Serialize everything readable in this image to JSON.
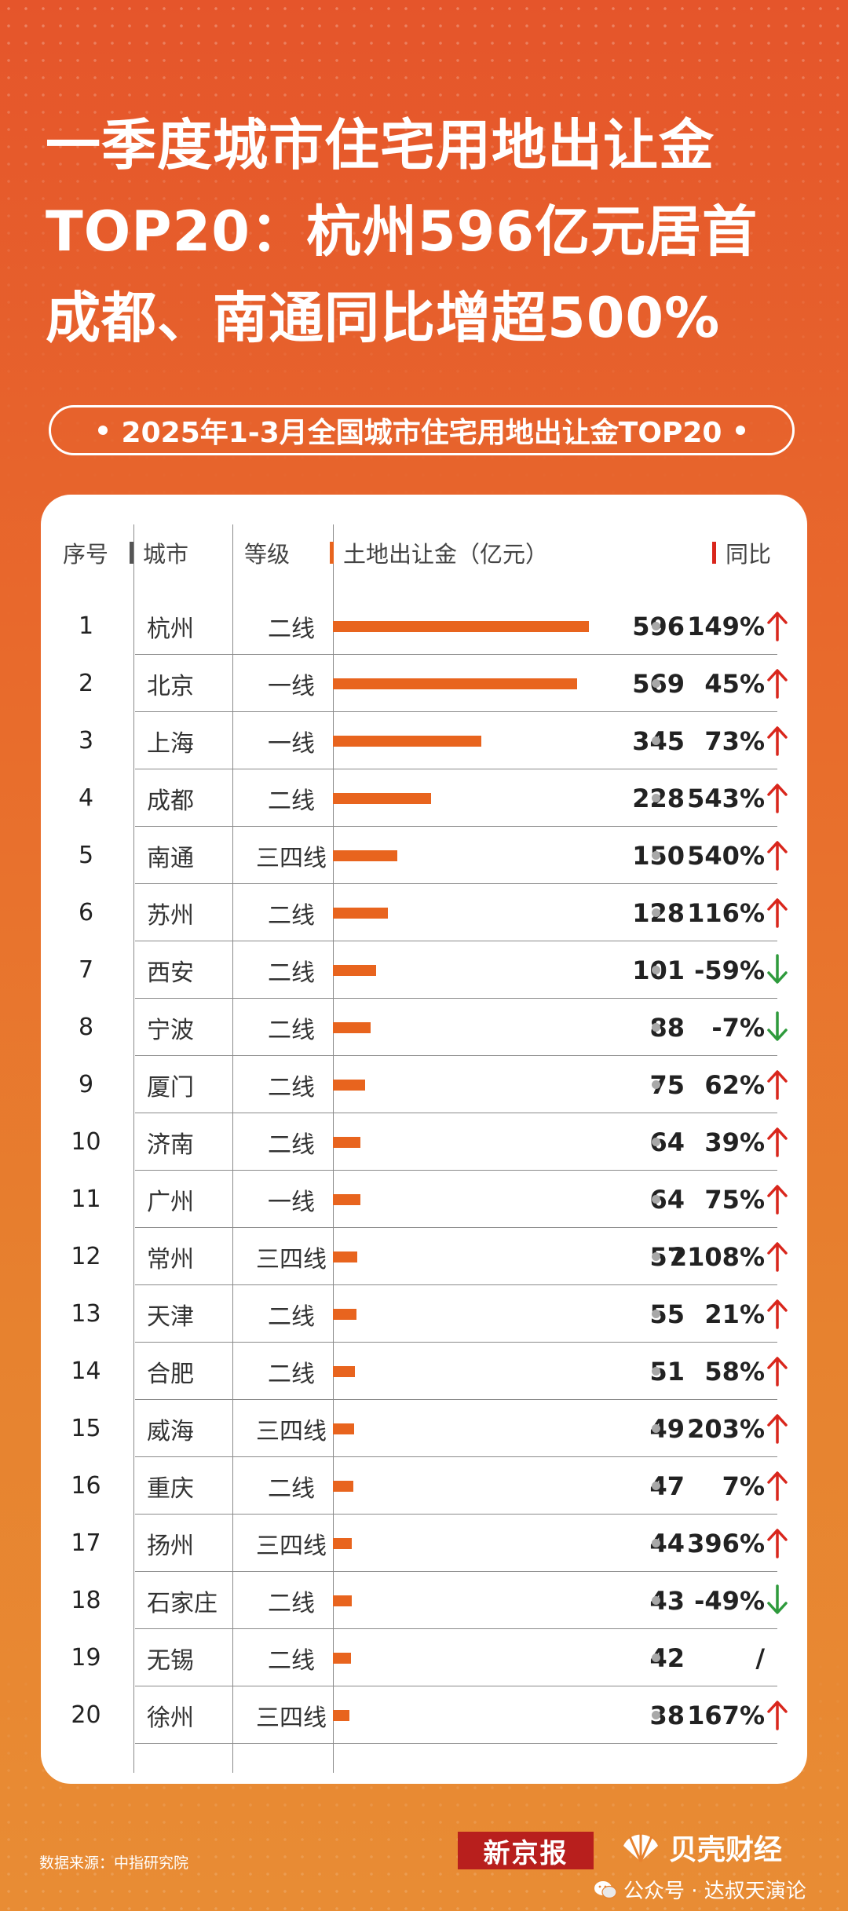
{
  "headline": {
    "line1": "一季度城市住宅用地出让金",
    "line2": "TOP20：杭州596亿元居首",
    "line3": "成都、南通同比增超500%"
  },
  "subtitle": "2025年1-3月全国城市住宅用地出让金TOP20",
  "table": {
    "headers": {
      "rank": "序号",
      "city": "城市",
      "tier": "等级",
      "value": "土地出让金（亿元）",
      "yoy": "同比"
    }
  },
  "chart_data": {
    "type": "bar",
    "title": "2025年1-3月全国城市住宅用地出让金TOP20",
    "ylabel": "土地出让金（亿元）",
    "rows": [
      {
        "rank": "1",
        "city": "杭州",
        "tier": "二线",
        "value": 596,
        "yoy": "149%",
        "dir": "up"
      },
      {
        "rank": "2",
        "city": "北京",
        "tier": "一线",
        "value": 569,
        "yoy": "45%",
        "dir": "up"
      },
      {
        "rank": "3",
        "city": "上海",
        "tier": "一线",
        "value": 345,
        "yoy": "73%",
        "dir": "up"
      },
      {
        "rank": "4",
        "city": "成都",
        "tier": "二线",
        "value": 228,
        "yoy": "543%",
        "dir": "up"
      },
      {
        "rank": "5",
        "city": "南通",
        "tier": "三四线",
        "value": 150,
        "yoy": "540%",
        "dir": "up"
      },
      {
        "rank": "6",
        "city": "苏州",
        "tier": "二线",
        "value": 128,
        "yoy": "116%",
        "dir": "up"
      },
      {
        "rank": "7",
        "city": "西安",
        "tier": "二线",
        "value": 101,
        "yoy": "-59%",
        "dir": "down"
      },
      {
        "rank": "8",
        "city": "宁波",
        "tier": "二线",
        "value": 88,
        "yoy": "-7%",
        "dir": "down"
      },
      {
        "rank": "9",
        "city": "厦门",
        "tier": "二线",
        "value": 75,
        "yoy": "62%",
        "dir": "up"
      },
      {
        "rank": "10",
        "city": "济南",
        "tier": "二线",
        "value": 64,
        "yoy": "39%",
        "dir": "up"
      },
      {
        "rank": "11",
        "city": "广州",
        "tier": "一线",
        "value": 64,
        "yoy": "75%",
        "dir": "up"
      },
      {
        "rank": "12",
        "city": "常州",
        "tier": "三四线",
        "value": 57,
        "yoy": "2108%",
        "dir": "up"
      },
      {
        "rank": "13",
        "city": "天津",
        "tier": "二线",
        "value": 55,
        "yoy": "21%",
        "dir": "up"
      },
      {
        "rank": "14",
        "city": "合肥",
        "tier": "二线",
        "value": 51,
        "yoy": "58%",
        "dir": "up"
      },
      {
        "rank": "15",
        "city": "威海",
        "tier": "三四线",
        "value": 49,
        "yoy": "203%",
        "dir": "up"
      },
      {
        "rank": "16",
        "city": "重庆",
        "tier": "二线",
        "value": 47,
        "yoy": "7%",
        "dir": "up"
      },
      {
        "rank": "17",
        "city": "扬州",
        "tier": "三四线",
        "value": 44,
        "yoy": "396%",
        "dir": "up"
      },
      {
        "rank": "18",
        "city": "石家庄",
        "tier": "二线",
        "value": 43,
        "yoy": "-49%",
        "dir": "down"
      },
      {
        "rank": "19",
        "city": "无锡",
        "tier": "二线",
        "value": 42,
        "yoy": "/",
        "dir": "none"
      },
      {
        "rank": "20",
        "city": "徐州",
        "tier": "三四线",
        "value": 38,
        "yoy": "167%",
        "dir": "up"
      }
    ],
    "xlim": [
      0,
      596
    ],
    "grid": false
  },
  "colors": {
    "bar": "#e8641e",
    "up": "#d9261c",
    "down": "#2e9a3c",
    "header_mark_city": "#555555",
    "header_mark_value": "#e8641e",
    "header_mark_yoy": "#d9261c"
  },
  "footer": {
    "source": "数据来源：中指研究院",
    "logo_xjb": "新京报",
    "logo_bk": "贝壳财经",
    "wechat": "公众号 · 达叔天演论"
  }
}
